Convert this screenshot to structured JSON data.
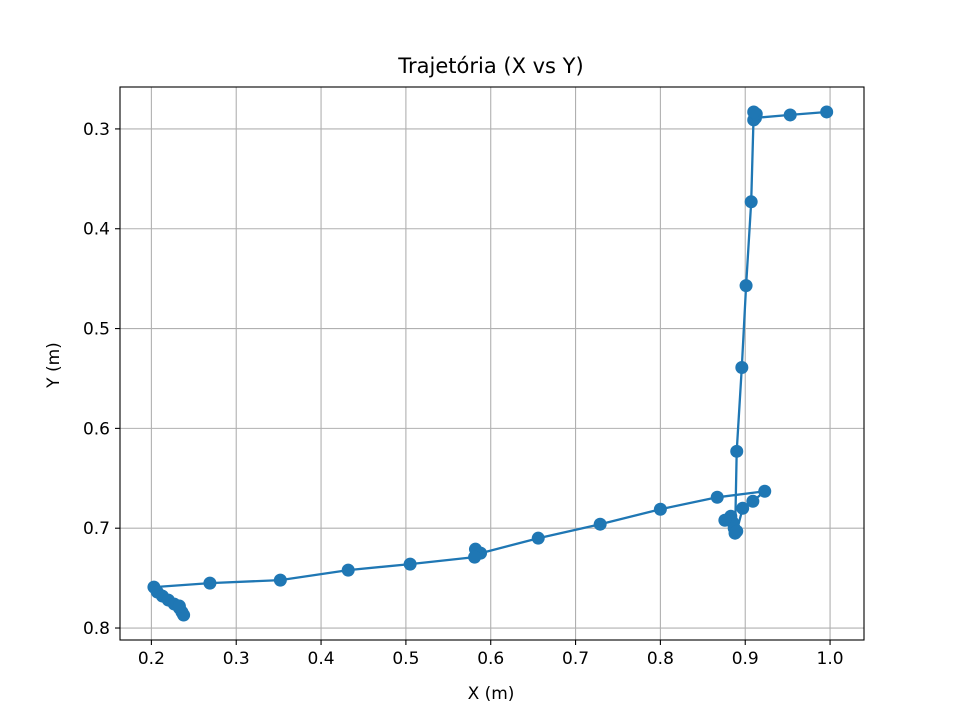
{
  "chart_data": {
    "type": "line",
    "title": "Trajetória (X vs Y)",
    "xlabel": "X (m)",
    "ylabel": "Y (m)",
    "xlim": [
      0.163,
      1.04
    ],
    "ylim": [
      0.812,
      0.258
    ],
    "y_inverted": true,
    "grid": true,
    "x_ticks": [
      0.2,
      0.3,
      0.4,
      0.5,
      0.6,
      0.7,
      0.8,
      0.9,
      1.0
    ],
    "x_tick_labels": [
      "0.2",
      "0.3",
      "0.4",
      "0.5",
      "0.6",
      "0.7",
      "0.8",
      "0.9",
      "1.0"
    ],
    "y_ticks": [
      0.3,
      0.4,
      0.5,
      0.6,
      0.7,
      0.8
    ],
    "y_tick_labels": [
      "0.3",
      "0.4",
      "0.5",
      "0.6",
      "0.7",
      "0.8"
    ],
    "series": [
      {
        "color": "#1f77b4",
        "marker": "circle",
        "points": [
          [
            0.996,
            0.283
          ],
          [
            0.953,
            0.286
          ],
          [
            0.912,
            0.289
          ],
          [
            0.91,
            0.291
          ],
          [
            0.913,
            0.285
          ],
          [
            0.91,
            0.283
          ],
          [
            0.907,
            0.373
          ],
          [
            0.901,
            0.457
          ],
          [
            0.896,
            0.539
          ],
          [
            0.89,
            0.623
          ],
          [
            0.888,
            0.705
          ],
          [
            0.887,
            0.7
          ],
          [
            0.885,
            0.694
          ],
          [
            0.883,
            0.688
          ],
          [
            0.876,
            0.692
          ],
          [
            0.89,
            0.703
          ],
          [
            0.897,
            0.68
          ],
          [
            0.909,
            0.673
          ],
          [
            0.923,
            0.663
          ],
          [
            0.867,
            0.669
          ],
          [
            0.8,
            0.681
          ],
          [
            0.729,
            0.696
          ],
          [
            0.656,
            0.71
          ],
          [
            0.588,
            0.725
          ],
          [
            0.582,
            0.721
          ],
          [
            0.581,
            0.729
          ],
          [
            0.505,
            0.736
          ],
          [
            0.432,
            0.742
          ],
          [
            0.352,
            0.752
          ],
          [
            0.269,
            0.755
          ],
          [
            0.203,
            0.759
          ],
          [
            0.207,
            0.764
          ],
          [
            0.213,
            0.768
          ],
          [
            0.22,
            0.772
          ],
          [
            0.227,
            0.776
          ],
          [
            0.233,
            0.78
          ],
          [
            0.236,
            0.784
          ],
          [
            0.238,
            0.787
          ],
          [
            0.233,
            0.778
          ]
        ]
      }
    ]
  }
}
